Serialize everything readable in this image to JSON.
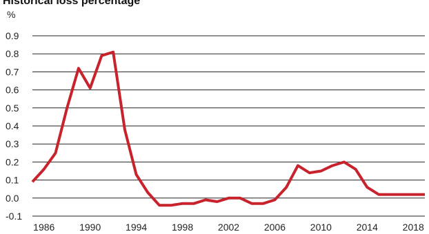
{
  "chart_data": {
    "type": "line",
    "title": "Historical loss percentage",
    "ylabel": "%",
    "xlabel": "",
    "ylim": [
      -0.1,
      0.9
    ],
    "xlim": [
      1985,
      2019
    ],
    "y_ticks": [
      "0.9",
      "0.8",
      "0.7",
      "0.6",
      "0.5",
      "0.4",
      "0.3",
      "0.2",
      "0.1",
      "0.0",
      "-0.1"
    ],
    "x_ticks": [
      "1986",
      "1990",
      "1994",
      "1998",
      "2002",
      "2006",
      "2010",
      "2014",
      "2018"
    ],
    "grid": true,
    "series": [
      {
        "color": "#c8232c",
        "x": [
          1985,
          1986,
          1987,
          1988,
          1989,
          1990,
          1991,
          1992,
          1993,
          1994,
          1995,
          1996,
          1997,
          1998,
          1999,
          2000,
          2001,
          2002,
          2003,
          2004,
          2005,
          2006,
          2007,
          2008,
          2009,
          2010,
          2011,
          2012,
          2013,
          2014,
          2015,
          2016,
          2017,
          2018,
          2019
        ],
        "values": [
          0.09,
          0.16,
          0.25,
          0.5,
          0.72,
          0.61,
          0.79,
          0.81,
          0.38,
          0.13,
          0.03,
          -0.04,
          -0.04,
          -0.03,
          -0.03,
          -0.01,
          -0.02,
          0.0,
          0.0,
          -0.03,
          -0.03,
          -0.01,
          0.06,
          0.18,
          0.14,
          0.15,
          0.18,
          0.2,
          0.16,
          0.06,
          0.02,
          0.02,
          0.02,
          0.02,
          0.02
        ]
      }
    ]
  }
}
